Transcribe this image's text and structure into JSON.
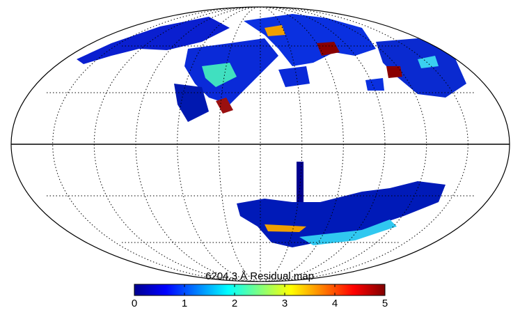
{
  "map": {
    "title": "6204.3 Å  Residual map",
    "colorbar": {
      "lim": [
        0,
        5
      ],
      "ticks": [
        0,
        1,
        2,
        3,
        4,
        5
      ]
    }
  }
}
